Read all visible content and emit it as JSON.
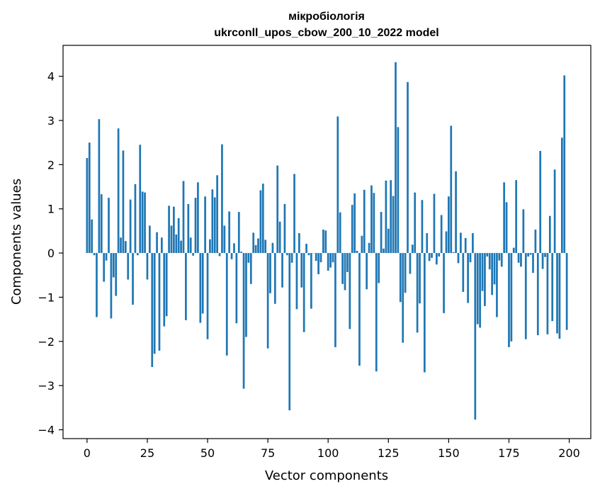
{
  "chart_data": {
    "type": "bar",
    "title_line1": "мікробіологія",
    "title_line2": "ukrconll_upos_cbow_200_10_2022 model",
    "xlabel": "Vector components",
    "ylabel": "Components values",
    "xlim": [
      -9.95,
      208.95
    ],
    "ylim": [
      -4.2,
      4.7
    ],
    "xticks": [
      0,
      25,
      50,
      75,
      100,
      125,
      150,
      175,
      200
    ],
    "xtick_labels": [
      "0",
      "25",
      "50",
      "75",
      "100",
      "125",
      "150",
      "175",
      "200"
    ],
    "yticks": [
      -4,
      -3,
      -2,
      -1,
      0,
      1,
      2,
      3,
      4
    ],
    "ytick_labels": [
      "−4",
      "−3",
      "−2",
      "−1",
      "0",
      "1",
      "2",
      "3",
      "4"
    ],
    "grid": false,
    "bar_color": "#1f77b4",
    "values": [
      2.15,
      2.5,
      0.76,
      -0.05,
      -1.45,
      3.03,
      1.33,
      -0.65,
      -0.17,
      1.25,
      -1.48,
      -0.55,
      -0.97,
      2.82,
      0.35,
      2.32,
      0.27,
      -0.6,
      1.21,
      -1.17,
      1.56,
      -0.05,
      2.45,
      1.39,
      1.37,
      -0.6,
      0.62,
      -2.58,
      -2.28,
      0.47,
      -2.21,
      0.35,
      -1.66,
      -1.43,
      1.07,
      0.62,
      1.05,
      0.42,
      0.79,
      0.28,
      1.63,
      -1.52,
      1.11,
      0.35,
      -0.06,
      1.25,
      1.6,
      -1.58,
      -1.37,
      1.28,
      -1.95,
      0.31,
      1.44,
      1.26,
      1.76,
      -0.07,
      2.46,
      0.62,
      -2.32,
      0.94,
      -0.14,
      0.22,
      -1.59,
      0.93,
      0.03,
      -3.07,
      -1.9,
      -0.22,
      -0.7,
      0.46,
      0.18,
      0.33,
      1.42,
      1.57,
      0.3,
      -2.16,
      -0.91,
      0.23,
      -1.15,
      1.98,
      0.71,
      -0.78,
      1.11,
      -0.05,
      -3.56,
      -0.22,
      1.79,
      -1.27,
      0.45,
      -0.78,
      -1.79,
      0.21,
      -0.05,
      -1.26,
      0.0,
      -0.18,
      -0.48,
      -0.21,
      0.53,
      0.51,
      -0.4,
      -0.33,
      -0.21,
      -2.13,
      3.09,
      0.92,
      -0.7,
      -0.84,
      -0.43,
      -1.72,
      1.09,
      1.35,
      0.05,
      -2.55,
      0.39,
      1.43,
      -0.82,
      0.23,
      1.53,
      1.36,
      -2.68,
      -0.68,
      0.93,
      0.1,
      1.64,
      0.55,
      1.65,
      1.29,
      4.32,
      2.85,
      -1.11,
      -2.03,
      -0.9,
      3.87,
      -0.47,
      0.19,
      1.37,
      -1.8,
      -1.14,
      1.2,
      -2.7,
      0.45,
      -0.18,
      -0.11,
      1.34,
      -0.26,
      -0.08,
      0.86,
      -1.36,
      0.49,
      1.28,
      2.88,
      0.02,
      1.85,
      -0.23,
      0.46,
      -0.88,
      0.34,
      -1.13,
      -0.21,
      0.45,
      -3.77,
      -1.61,
      -1.69,
      -0.86,
      -1.2,
      -0.08,
      -0.37,
      -0.95,
      -0.71,
      -1.45,
      -0.17,
      -0.31,
      1.6,
      1.15,
      -2.13,
      -2.0,
      0.12,
      1.65,
      -0.22,
      -0.31,
      0.99,
      -1.95,
      -0.08,
      -0.04,
      -0.45,
      0.53,
      -1.86,
      2.31,
      -0.36,
      -0.09,
      -1.84,
      0.84,
      -1.54,
      1.89,
      -1.82,
      -1.94,
      2.61,
      4.02,
      -1.74
    ]
  }
}
